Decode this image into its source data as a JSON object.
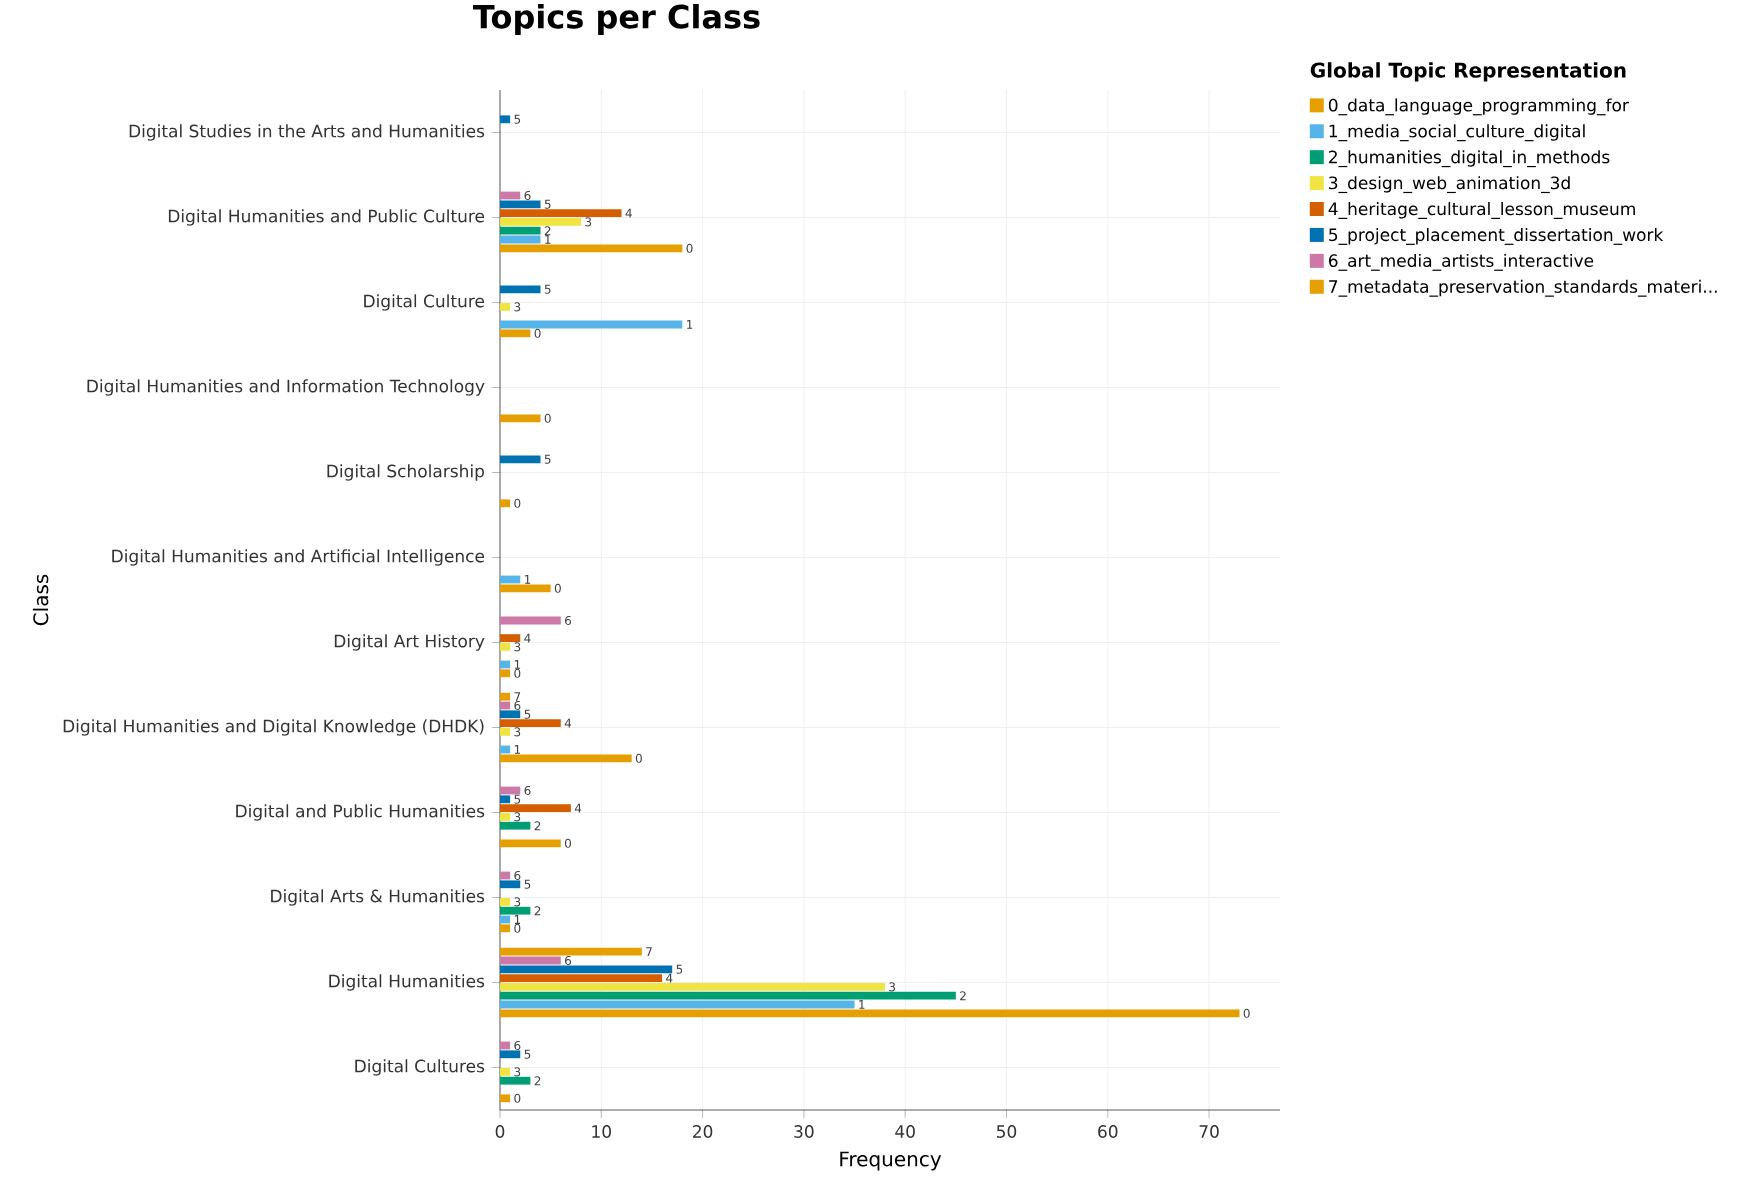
{
  "chart_data": {
    "type": "bar",
    "orientation": "horizontal",
    "title": "Topics per Class",
    "xlabel": "Frequency",
    "ylabel": "Class",
    "legend_title": "Global Topic Representation",
    "categories": [
      "Digital Studies in the Arts and Humanities",
      "Digital Humanities and Public Culture",
      "Digital Culture",
      "Digital Humanities and Information Technology",
      "Digital Scholarship",
      "Digital Humanities and Artificial Intelligence",
      "Digital Art History",
      "Digital Humanities and Digital Knowledge (DHDK)",
      "Digital and Public Humanities",
      "Digital Arts & Humanities",
      "Digital Humanities",
      "Digital Cultures"
    ],
    "series": [
      {
        "name": "0_data_language_programming_for",
        "color": "#e69f00",
        "values": [
          null,
          18,
          3,
          4,
          1,
          5,
          1,
          13,
          6,
          1,
          73,
          1
        ]
      },
      {
        "name": "1_media_social_culture_digital",
        "color": "#56b4e9",
        "values": [
          null,
          4,
          18,
          null,
          null,
          2,
          1,
          1,
          null,
          1,
          35,
          null
        ]
      },
      {
        "name": "2_humanities_digital_in_methods",
        "color": "#009e73",
        "values": [
          null,
          4,
          null,
          null,
          null,
          null,
          null,
          null,
          3,
          3,
          45,
          3
        ]
      },
      {
        "name": "3_design_web_animation_3d",
        "color": "#f0e442",
        "values": [
          null,
          8,
          1,
          null,
          null,
          null,
          1,
          1,
          1,
          1,
          38,
          1
        ]
      },
      {
        "name": "4_heritage_cultural_lesson_museum",
        "color": "#d55e00",
        "values": [
          null,
          12,
          null,
          null,
          null,
          null,
          2,
          6,
          7,
          null,
          16,
          null
        ]
      },
      {
        "name": "5_project_placement_dissertation_work",
        "color": "#0072b2",
        "values": [
          1,
          4,
          4,
          null,
          4,
          null,
          null,
          2,
          1,
          2,
          17,
          2
        ]
      },
      {
        "name": "6_art_media_artists_interactive",
        "color": "#cc79a7",
        "values": [
          null,
          2,
          null,
          null,
          null,
          null,
          6,
          1,
          2,
          1,
          6,
          1
        ]
      },
      {
        "name": "7_metadata_preservation_standards_materi...",
        "color": "#e69f00",
        "values": [
          null,
          null,
          null,
          null,
          null,
          null,
          null,
          1,
          null,
          null,
          14,
          null
        ]
      }
    ],
    "annotations": [
      "0",
      "0",
      "0",
      "0",
      "0",
      "0",
      "0",
      "0",
      "0",
      "0",
      "0",
      "1",
      "1",
      "1",
      "1",
      "1",
      "1",
      "1",
      "2",
      "2",
      "2",
      "2",
      "2",
      "3",
      "3",
      "3",
      "3",
      "3",
      "3",
      "3",
      "3",
      "4",
      "4",
      "4",
      "4",
      "4",
      "5",
      "5",
      "5",
      "5",
      "5",
      "5",
      "5",
      "5",
      "5",
      "6",
      "6",
      "6",
      "6",
      "6",
      "6",
      "6",
      "7",
      "7"
    ],
    "xlim": [
      0,
      77
    ],
    "xticks": [
      0,
      10,
      20,
      30,
      40,
      50,
      60,
      70
    ],
    "grid": true,
    "legend": "top right"
  }
}
